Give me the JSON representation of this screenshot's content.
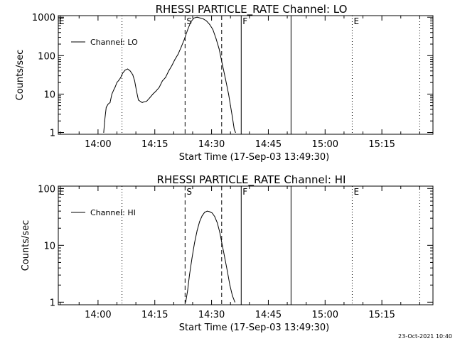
{
  "timestamp": "23-Oct-2021 10:40",
  "chart_data": [
    {
      "type": "line",
      "title": "RHESSI PARTICLE_RATE Channel: LO",
      "xlabel": "Start Time (17-Sep-03 13:49:30)",
      "ylabel": "Counts/sec",
      "yscale": "log",
      "ylim": [
        0.9,
        1100
      ],
      "xlim": [
        0,
        5940
      ],
      "x_unit": "seconds after 13:49:30",
      "x_ticks": [
        {
          "value": 630,
          "label": "14:00"
        },
        {
          "value": 1530,
          "label": "14:15"
        },
        {
          "value": 2430,
          "label": "14:30"
        },
        {
          "value": 3330,
          "label": "14:45"
        },
        {
          "value": 4230,
          "label": "15:00"
        },
        {
          "value": 5130,
          "label": "15:15"
        }
      ],
      "y_ticks": [
        {
          "value": 1,
          "label": "1"
        },
        {
          "value": 10,
          "label": "10"
        },
        {
          "value": 100,
          "label": "100"
        },
        {
          "value": 1000,
          "label": "1000"
        }
      ],
      "legend": {
        "label": "Channel: LO",
        "position": "top-left"
      },
      "markers": [
        {
          "x": 1010,
          "label": "",
          "style": "dotted"
        },
        {
          "x": 2010,
          "label": "S",
          "style": "dashed"
        },
        {
          "x": 2590,
          "label": "",
          "style": "dashed"
        },
        {
          "x": 2900,
          "label": "F",
          "style": "solid"
        },
        {
          "x": 3690,
          "label": "",
          "style": "solid"
        },
        {
          "x": 4660,
          "label": "E",
          "style": "dotted"
        },
        {
          "x": 5730,
          "label": "",
          "style": "dotted"
        }
      ],
      "corner_label": "E",
      "series": [
        {
          "name": "Channel: LO",
          "x": [
            720,
            735,
            760,
            790,
            820,
            850,
            880,
            900,
            930,
            960,
            990,
            1020,
            1060,
            1100,
            1140,
            1180,
            1210,
            1240,
            1270,
            1300,
            1330,
            1360,
            1400,
            1450,
            1500,
            1550,
            1600,
            1650,
            1700,
            1750,
            1800,
            1850,
            1900,
            1950,
            2000,
            2050,
            2100,
            2150,
            2200,
            2250,
            2300,
            2350,
            2400,
            2450,
            2500,
            2550,
            2600,
            2650,
            2700,
            2730,
            2760,
            2790,
            2810
          ],
          "y": [
            1,
            2,
            4.5,
            5.5,
            6,
            10,
            13,
            15,
            20,
            23,
            27,
            35,
            42,
            45,
            40,
            32,
            22,
            12,
            7,
            6.5,
            6,
            6.3,
            6.5,
            8,
            10,
            12,
            15,
            22,
            27,
            40,
            55,
            80,
            110,
            170,
            270,
            470,
            750,
            950,
            1000,
            950,
            900,
            800,
            650,
            480,
            280,
            150,
            60,
            25,
            10,
            5,
            2.5,
            1.2,
            1
          ]
        }
      ]
    },
    {
      "type": "line",
      "title": "RHESSI PARTICLE_RATE Channel: HI",
      "xlabel": "Start Time (17-Sep-03 13:49:30)",
      "ylabel": "Counts/sec",
      "yscale": "log",
      "ylim": [
        0.9,
        110
      ],
      "xlim": [
        0,
        5940
      ],
      "x_unit": "seconds after 13:49:30",
      "x_ticks": [
        {
          "value": 630,
          "label": "14:00"
        },
        {
          "value": 1530,
          "label": "14:15"
        },
        {
          "value": 2430,
          "label": "14:30"
        },
        {
          "value": 3330,
          "label": "14:45"
        },
        {
          "value": 4230,
          "label": "15:00"
        },
        {
          "value": 5130,
          "label": "15:15"
        }
      ],
      "y_ticks": [
        {
          "value": 1,
          "label": "1"
        },
        {
          "value": 10,
          "label": "10"
        },
        {
          "value": 100,
          "label": "100"
        }
      ],
      "legend": {
        "label": "Channel: HI",
        "position": "top-left"
      },
      "markers": [
        {
          "x": 1010,
          "label": "",
          "style": "dotted"
        },
        {
          "x": 2010,
          "label": "S",
          "style": "dashed"
        },
        {
          "x": 2590,
          "label": "",
          "style": "dashed"
        },
        {
          "x": 2900,
          "label": "F",
          "style": "solid"
        },
        {
          "x": 3690,
          "label": "",
          "style": "solid"
        },
        {
          "x": 4660,
          "label": "E",
          "style": "dotted"
        },
        {
          "x": 5730,
          "label": "",
          "style": "dotted"
        }
      ],
      "corner_label": "E",
      "series": [
        {
          "name": "Channel: HI",
          "x": [
            2020,
            2050,
            2080,
            2120,
            2160,
            2200,
            2240,
            2280,
            2320,
            2360,
            2400,
            2440,
            2480,
            2520,
            2560,
            2600,
            2640,
            2680,
            2720,
            2760,
            2800
          ],
          "y": [
            1,
            1.6,
            3,
            6,
            11,
            18,
            26,
            33,
            38,
            40,
            39,
            37,
            32,
            25,
            17,
            10,
            6,
            3.5,
            2,
            1.3,
            1
          ]
        }
      ]
    }
  ]
}
